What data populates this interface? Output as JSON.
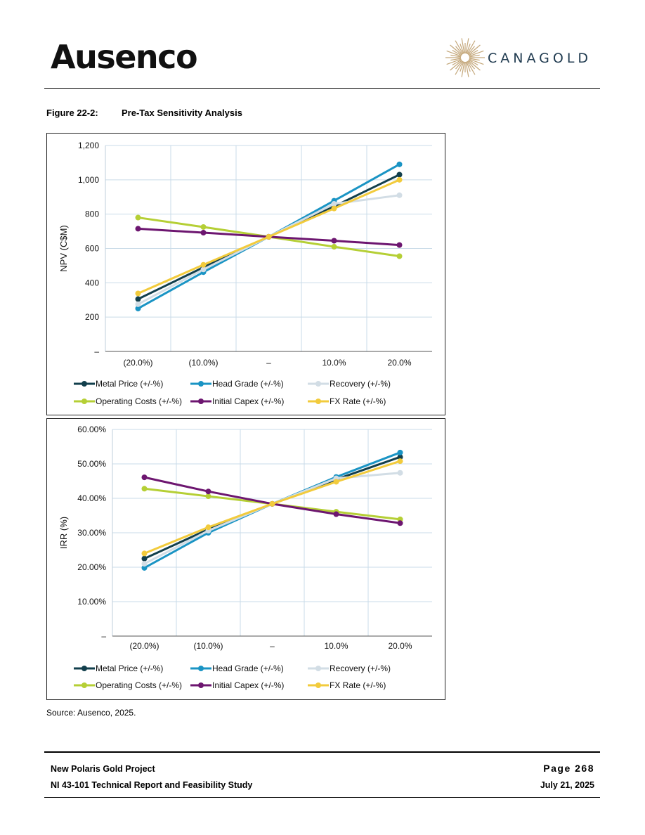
{
  "header": {
    "logo_left": "Ausenco",
    "logo_right": "CANAGOLD"
  },
  "figure": {
    "number": "Figure 22-2:",
    "title": "Pre-Tax Sensitivity Analysis"
  },
  "source": "Source: Ausenco, 2025.",
  "footer": {
    "project": "New Polaris Gold Project",
    "report": "NI 43-101 Technical Report and Feasibility Study",
    "page": "Page 268",
    "date": "July 21, 2025"
  },
  "colors": {
    "Metal Price (+/-%)": "#123f4c",
    "Head Grade (+/-%)": "#1a94c4",
    "Recovery (+/-%)": "#d2dde5",
    "Operating Costs (+/-%)": "#b5cf35",
    "Initial Capex (+/-%)": "#6d1670",
    "FX Rate (+/-%)": "#f2cb3c"
  },
  "chart_data": [
    {
      "type": "line",
      "title": "",
      "xlabel": "",
      "ylabel": "NPV (C$M)",
      "categories": [
        "(20.0%)",
        "(10.0%)",
        "–",
        "10.0%",
        "20.0%"
      ],
      "ylim": [
        0,
        1200
      ],
      "yticks": [
        "–",
        "200",
        "400",
        "600",
        "800",
        "1,000",
        "1,200"
      ],
      "grid": true,
      "legend": "bottom",
      "series": [
        {
          "name": "Metal Price (+/-%)",
          "values": [
            305,
            490,
            668,
            845,
            1030
          ]
        },
        {
          "name": "Head Grade (+/-%)",
          "values": [
            250,
            462,
            668,
            878,
            1090
          ]
        },
        {
          "name": "Recovery (+/-%)",
          "values": [
            275,
            478,
            668,
            860,
            910
          ]
        },
        {
          "name": "Operating Costs (+/-%)",
          "values": [
            780,
            725,
            668,
            610,
            555
          ]
        },
        {
          "name": "Initial Capex (+/-%)",
          "values": [
            715,
            692,
            668,
            645,
            620
          ]
        },
        {
          "name": "FX Rate (+/-%)",
          "values": [
            338,
            505,
            668,
            833,
            1000
          ]
        }
      ]
    },
    {
      "type": "line",
      "title": "",
      "xlabel": "",
      "ylabel": "IRR (%)",
      "categories": [
        "(20.0%)",
        "(10.0%)",
        "–",
        "10.0%",
        "20.0%"
      ],
      "ylim": [
        0,
        60
      ],
      "yticks": [
        "–",
        "10.00%",
        "20.00%",
        "30.00%",
        "40.00%",
        "50.00%",
        "60.00%"
      ],
      "grid": true,
      "legend": "bottom",
      "series": [
        {
          "name": "Metal Price (+/-%)",
          "values": [
            22.5,
            31.0,
            38.4,
            45.5,
            52.0
          ]
        },
        {
          "name": "Head Grade (+/-%)",
          "values": [
            19.8,
            30.0,
            38.4,
            46.2,
            53.3
          ]
        },
        {
          "name": "Recovery (+/-%)",
          "values": [
            21.0,
            30.6,
            38.4,
            45.8,
            47.4
          ]
        },
        {
          "name": "Operating Costs (+/-%)",
          "values": [
            42.8,
            40.6,
            38.4,
            36.1,
            33.9
          ]
        },
        {
          "name": "Initial Capex (+/-%)",
          "values": [
            46.1,
            42.0,
            38.4,
            35.4,
            32.8
          ]
        },
        {
          "name": "FX Rate (+/-%)",
          "values": [
            24.0,
            31.6,
            38.4,
            44.8,
            50.8
          ]
        }
      ]
    }
  ]
}
